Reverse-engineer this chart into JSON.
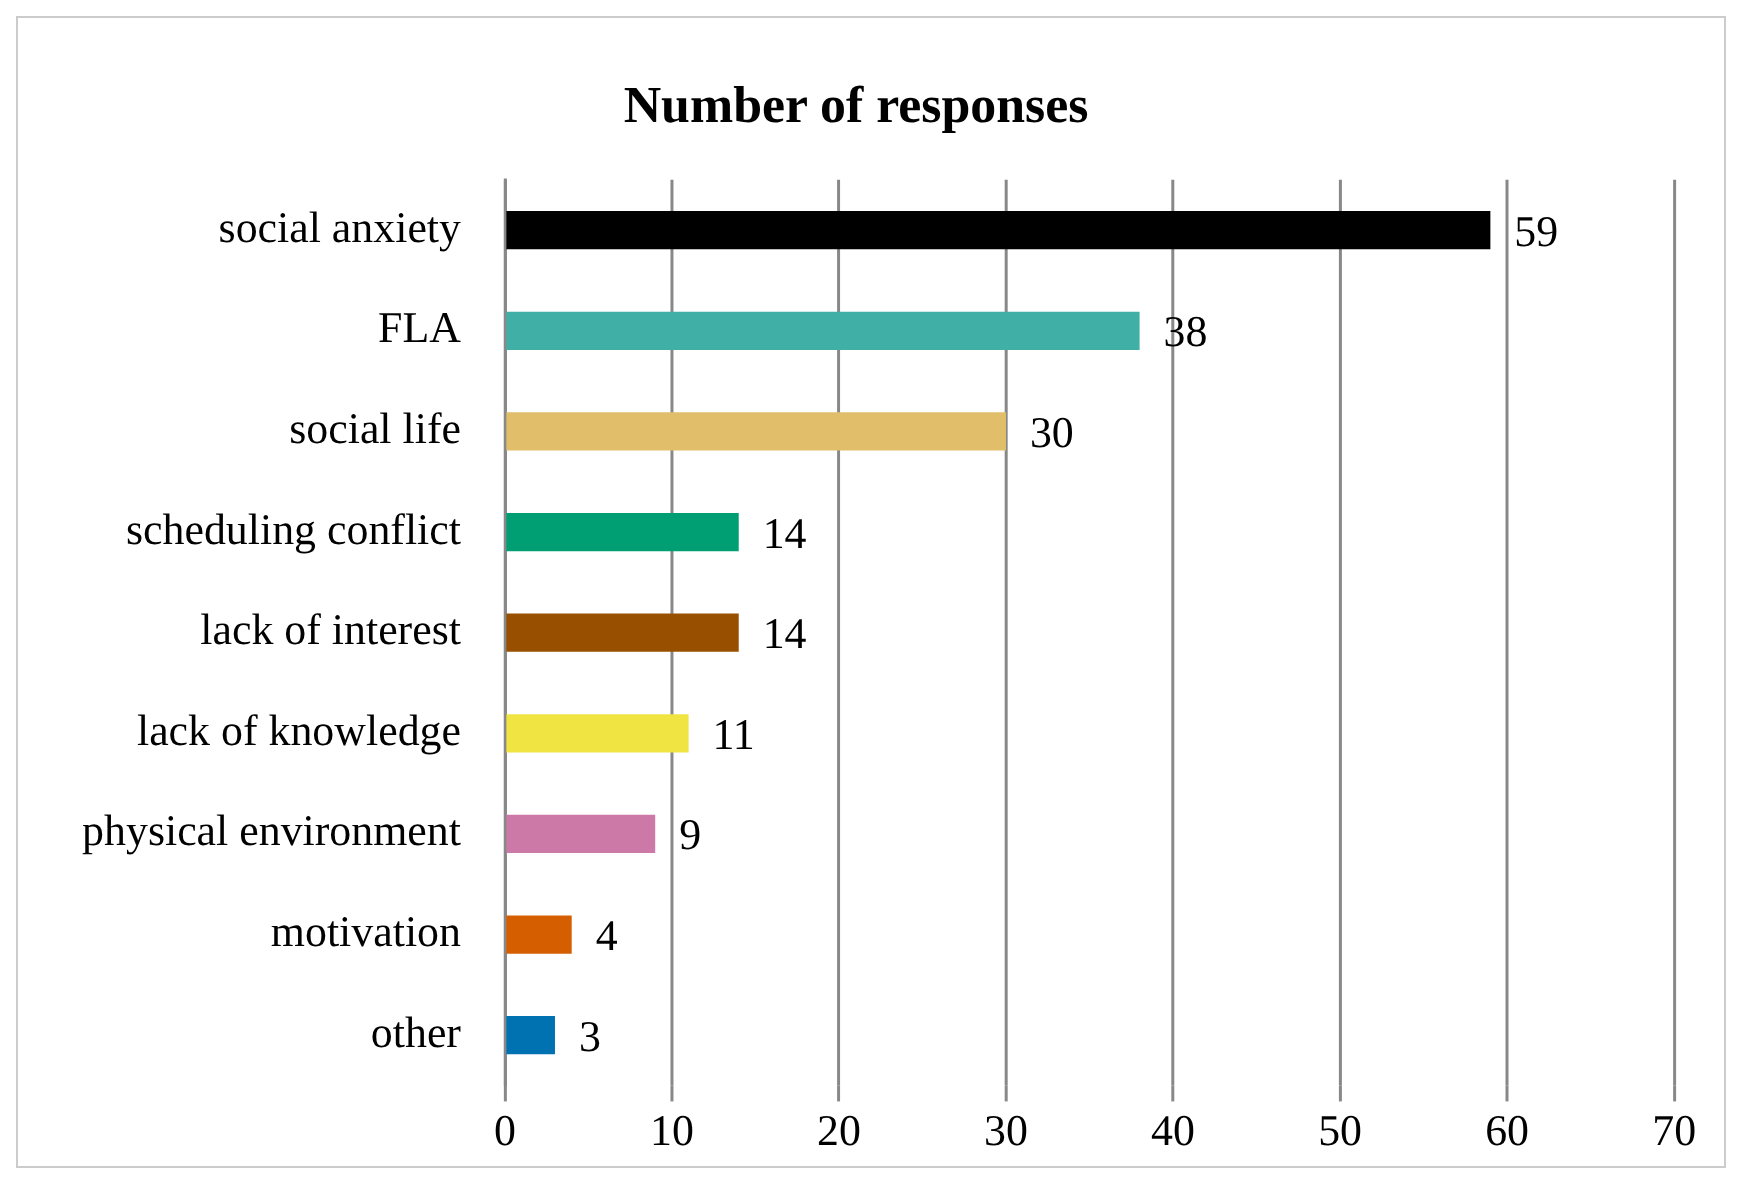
{
  "chart_data": {
    "type": "bar",
    "orientation": "horizontal",
    "title": "Number of responses",
    "categories": [
      "social anxiety",
      "FLA",
      "social life",
      "scheduling conflict",
      "lack of interest",
      "lack of knowledge",
      "physical environment",
      "motivation",
      "other"
    ],
    "values": [
      59,
      38,
      30,
      14,
      14,
      11,
      9,
      4,
      3
    ],
    "colors": [
      "#000000",
      "#40b0a6",
      "#e1be6a",
      "#009e73",
      "#994f00",
      "#f0e442",
      "#cc79a7",
      "#d55e00",
      "#0072b2"
    ],
    "xlim": [
      0,
      70
    ],
    "xticks": [
      0,
      10,
      20,
      30,
      40,
      50,
      60,
      70
    ],
    "grid": "x",
    "legend": false,
    "data_labels": true
  }
}
